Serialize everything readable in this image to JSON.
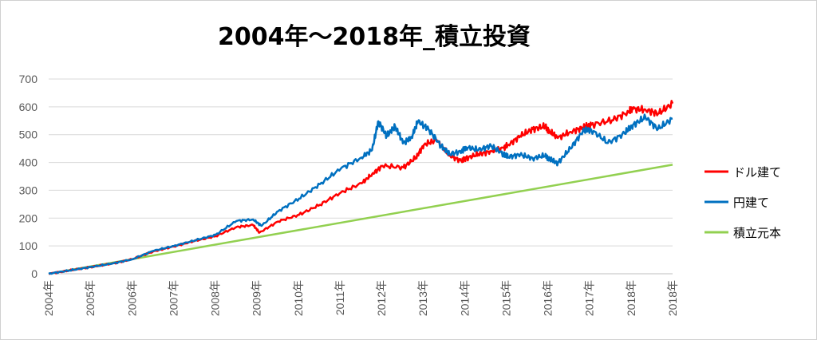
{
  "chart_data": {
    "type": "line",
    "title": "2004年～2018年_積立投資",
    "xlabel": "",
    "ylabel": "",
    "ylim": [
      0,
      700
    ],
    "yticks": [
      0,
      100,
      200,
      300,
      400,
      500,
      600,
      700
    ],
    "xlim": [
      2004.0,
      2018.95
    ],
    "xticks": [
      "2004年",
      "2005年",
      "2006年",
      "2007年",
      "2008年",
      "2009年",
      "2010年",
      "2011年",
      "2012年",
      "2013年",
      "2014年",
      "2015年",
      "2016年",
      "2017年",
      "2018年",
      "2018年"
    ],
    "grid": true,
    "legend_position": "right",
    "series": [
      {
        "name": "ドル建て",
        "color": "#ff0000",
        "x": [
          2004.0,
          2004.5,
          2005.0,
          2005.5,
          2006.0,
          2006.5,
          2007.0,
          2007.5,
          2008.0,
          2008.5,
          2008.9,
          2009.05,
          2009.5,
          2010.0,
          2010.5,
          2011.0,
          2011.5,
          2011.75,
          2012.0,
          2012.5,
          2012.8,
          2013.0,
          2013.3,
          2013.6,
          2013.9,
          2014.0,
          2014.3,
          2014.6,
          2014.9,
          2015.0,
          2015.3,
          2015.6,
          2015.9,
          2016.0,
          2016.2,
          2016.5,
          2016.8,
          2017.0,
          2017.5,
          2017.9,
          2018.0,
          2018.3,
          2018.6,
          2018.95
        ],
        "values": [
          0,
          12,
          24,
          36,
          52,
          80,
          98,
          118,
          135,
          168,
          175,
          148,
          188,
          212,
          248,
          292,
          325,
          358,
          388,
          382,
          418,
          465,
          480,
          425,
          405,
          415,
          430,
          440,
          452,
          462,
          495,
          520,
          530,
          512,
          488,
          510,
          525,
          535,
          552,
          582,
          592,
          590,
          575,
          612
        ]
      },
      {
        "name": "円建て",
        "color": "#0070c0",
        "x": [
          2004.0,
          2004.5,
          2005.0,
          2005.5,
          2006.0,
          2006.5,
          2007.0,
          2007.5,
          2008.0,
          2008.5,
          2008.9,
          2009.1,
          2009.5,
          2010.0,
          2010.5,
          2011.0,
          2011.5,
          2011.75,
          2011.9,
          2012.1,
          2012.3,
          2012.5,
          2012.7,
          2012.85,
          2013.1,
          2013.4,
          2013.6,
          2013.9,
          2014.0,
          2014.3,
          2014.6,
          2014.9,
          2015.0,
          2015.3,
          2015.6,
          2015.9,
          2016.0,
          2016.2,
          2016.5,
          2016.8,
          2017.0,
          2017.4,
          2017.8,
          2018.0,
          2018.3,
          2018.6,
          2018.95
        ],
        "values": [
          0,
          12,
          24,
          36,
          52,
          82,
          100,
          120,
          140,
          190,
          195,
          172,
          225,
          270,
          322,
          378,
          418,
          445,
          548,
          495,
          530,
          470,
          492,
          548,
          520,
          460,
          430,
          440,
          455,
          445,
          460,
          430,
          420,
          428,
          415,
          425,
          412,
          398,
          450,
          512,
          518,
          470,
          505,
          535,
          562,
          520,
          558
        ]
      },
      {
        "name": "積立元本",
        "color": "#92d050",
        "x": [
          2004.0,
          2018.95
        ],
        "values": [
          0,
          392
        ]
      }
    ]
  }
}
